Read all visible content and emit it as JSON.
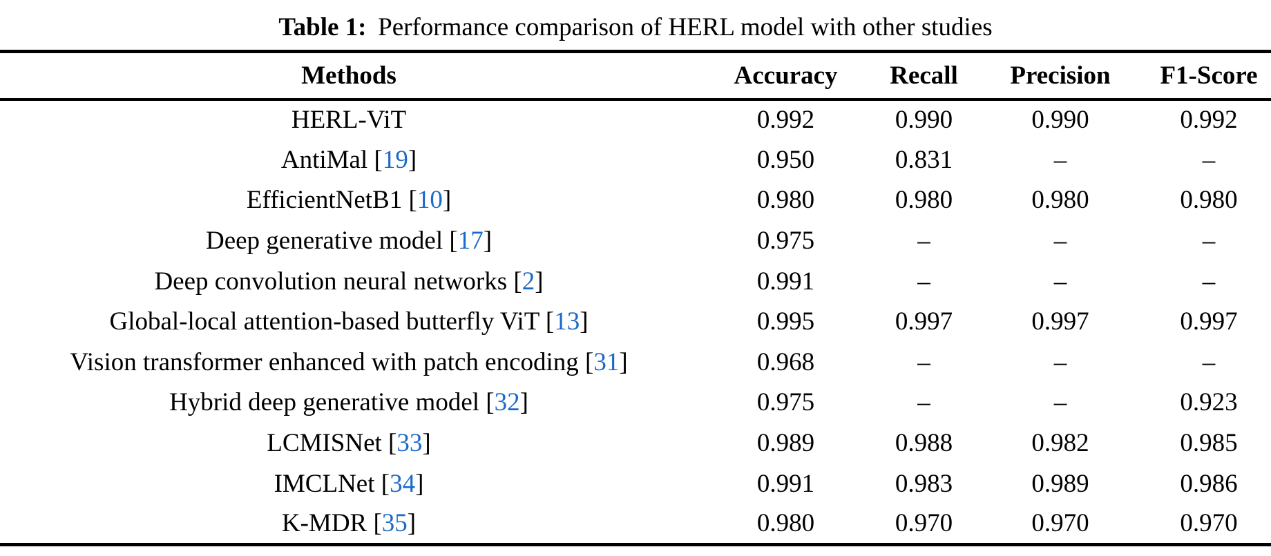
{
  "caption": {
    "label": "Table 1:",
    "text": "Performance comparison of HERL model with other studies"
  },
  "table": {
    "columns": [
      "Methods",
      "Accuracy",
      "Recall",
      "Precision",
      "F1-Score"
    ],
    "rows": [
      {
        "method": "HERL-ViT",
        "cite": "",
        "values": [
          "0.992",
          "0.990",
          "0.990",
          "0.992"
        ]
      },
      {
        "method": "AntiMal",
        "cite": "19",
        "values": [
          "0.950",
          "0.831",
          "–",
          "–"
        ]
      },
      {
        "method": "EfficientNetB1",
        "cite": "10",
        "values": [
          "0.980",
          "0.980",
          "0.980",
          "0.980"
        ]
      },
      {
        "method": "Deep generative model",
        "cite": "17",
        "values": [
          "0.975",
          "–",
          "–",
          "–"
        ]
      },
      {
        "method": "Deep convolution neural networks",
        "cite": "2",
        "values": [
          "0.991",
          "–",
          "–",
          "–"
        ]
      },
      {
        "method": "Global-local attention-based butterfly ViT",
        "cite": "13",
        "values": [
          "0.995",
          "0.997",
          "0.997",
          "0.997"
        ]
      },
      {
        "method": "Vision transformer enhanced with patch encoding",
        "cite": "31",
        "values": [
          "0.968",
          "–",
          "–",
          "–"
        ]
      },
      {
        "method": "Hybrid deep generative model",
        "cite": "32",
        "values": [
          "0.975",
          "–",
          "–",
          "0.923"
        ]
      },
      {
        "method": "LCMISNet",
        "cite": "33",
        "values": [
          "0.989",
          "0.988",
          "0.982",
          "0.985"
        ]
      },
      {
        "method": "IMCLNet",
        "cite": "34",
        "values": [
          "0.991",
          "0.983",
          "0.989",
          "0.986"
        ]
      },
      {
        "method": "K-MDR",
        "cite": "35",
        "values": [
          "0.980",
          "0.970",
          "0.970",
          "0.970"
        ]
      }
    ]
  },
  "colors": {
    "text": "#000000",
    "citation_blue": "#1b6ac9",
    "rule": "#000000"
  }
}
